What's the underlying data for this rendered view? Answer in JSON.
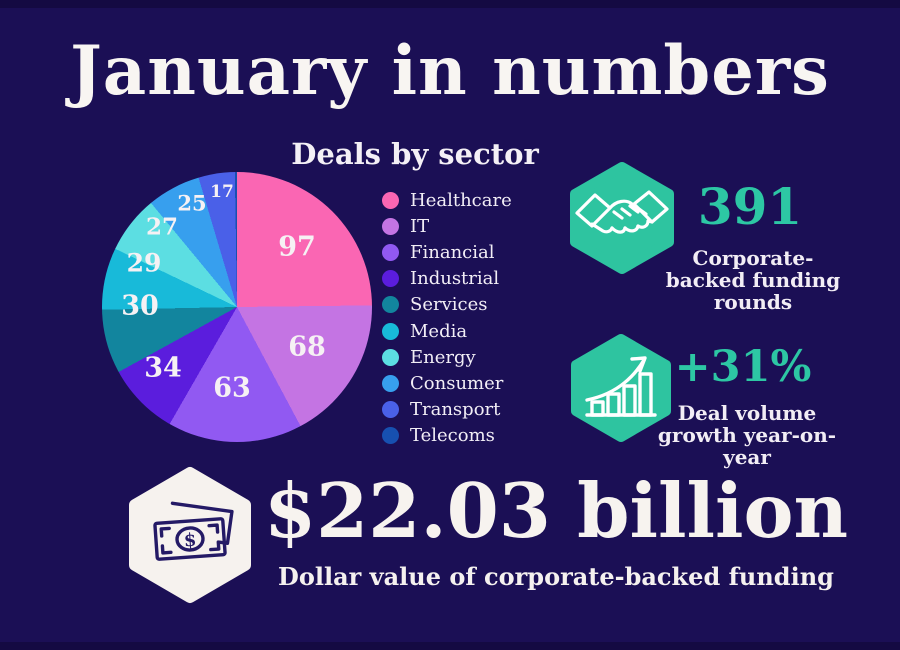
{
  "title": "January in numbers",
  "colors": {
    "background": "#1b0f55",
    "edge": "#140a42",
    "text_light": "#f5f1ef",
    "accent_teal": "#2dc7a4",
    "hexagon_green": "#2ec4a0",
    "hexagon_white": "#f6f2ee",
    "icon_navy": "#241a66"
  },
  "chart_data": {
    "type": "pie",
    "title": "Deals by sector",
    "categories": [
      "Healthcare",
      "IT",
      "Financial",
      "Industrial",
      "Services",
      "Media",
      "Energy",
      "Consumer",
      "Transport",
      "Telecoms"
    ],
    "values": [
      97,
      68,
      63,
      34,
      30,
      29,
      27,
      25,
      17,
      1
    ],
    "colors": [
      "#fa66b3",
      "#c474e3",
      "#9159f2",
      "#5b1ddd",
      "#12859e",
      "#18bad9",
      "#5cdee2",
      "#379fee",
      "#4a60e8",
      "#1750b0"
    ],
    "total": 391,
    "start_angle": 0,
    "direction": "clockwise",
    "legend_position": "right",
    "label_layout": [
      [
        195,
        75,
        27
      ],
      [
        205,
        175,
        27
      ],
      [
        130,
        216,
        27
      ],
      [
        61,
        196,
        27
      ],
      [
        38,
        134,
        27
      ],
      [
        42,
        91,
        25
      ],
      [
        60,
        55,
        23
      ],
      [
        90,
        31,
        21
      ],
      [
        120,
        20,
        17
      ],
      null
    ]
  },
  "stats": [
    {
      "icon": "handshake-icon",
      "value": "391",
      "caption": "Corporate-backed funding rounds"
    },
    {
      "icon": "growth-chart-icon",
      "value": "+31%",
      "caption": "Deal volume growth year-on-year"
    },
    {
      "icon": "money-icon",
      "value": "$22.03 billion",
      "caption": "Dollar value of corporate-backed funding"
    }
  ]
}
